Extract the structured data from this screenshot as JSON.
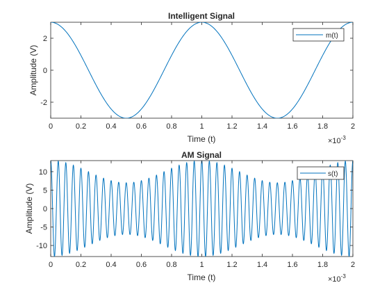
{
  "chart_data": [
    {
      "type": "line",
      "title": "Intelligent Signal",
      "xlabel": "Time (t)",
      "ylabel": "Amplitude (V)",
      "xlim": [
        0,
        2
      ],
      "ylim": [
        -3,
        3
      ],
      "x_scale_label": "×10",
      "x_scale_exponent": "-3",
      "xticks": [
        "0",
        "0.2",
        "0.4",
        "0.6",
        "0.8",
        "1",
        "1.2",
        "1.4",
        "1.6",
        "1.8",
        "2"
      ],
      "yticks": [
        "-2",
        "0",
        "2"
      ],
      "legend": {
        "entries": [
          "m(t)"
        ],
        "location": "top-right"
      },
      "grid": false,
      "line_color": "#0072BD",
      "series": [
        {
          "name": "m(t)",
          "function": "3*cos(2*pi*1000*t)",
          "amplitude": 3,
          "frequency_hz": 1000,
          "x_unit_scale": 0.001,
          "sample_points": [
            [
              0,
              3
            ],
            [
              0.25,
              0
            ],
            [
              0.5,
              -3
            ],
            [
              0.75,
              0
            ],
            [
              1,
              3
            ],
            [
              1.25,
              0
            ],
            [
              1.5,
              -3
            ],
            [
              1.75,
              0
            ],
            [
              2,
              3
            ]
          ]
        }
      ]
    },
    {
      "type": "line",
      "title": "AM Signal",
      "xlabel": "Time (t)",
      "ylabel": "Amplitude (V)",
      "xlim": [
        0,
        2
      ],
      "ylim": [
        -13,
        13
      ],
      "x_scale_label": "×10",
      "x_scale_exponent": "-3",
      "xticks": [
        "0",
        "0.2",
        "0.4",
        "0.6",
        "0.8",
        "1",
        "1.2",
        "1.4",
        "1.6",
        "1.8",
        "2"
      ],
      "yticks": [
        "-10",
        "-5",
        "0",
        "5",
        "10"
      ],
      "legend": {
        "entries": [
          "s(t)"
        ],
        "location": "top-right"
      },
      "grid": false,
      "line_color": "#0072BD",
      "series": [
        {
          "name": "s(t)",
          "function": "(10 + 3*cos(2*pi*1000*t)) * cos(2*pi*20000*t)",
          "carrier_amplitude": 10,
          "message_amplitude": 3,
          "carrier_frequency_hz": 20000,
          "message_frequency_hz": 1000,
          "envelope_max": 13,
          "envelope_min": 7,
          "x_unit_scale": 0.001
        }
      ]
    }
  ]
}
